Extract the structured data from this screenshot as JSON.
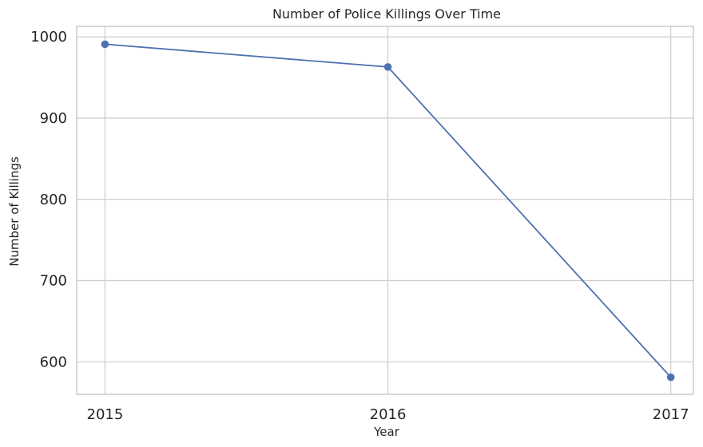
{
  "chart_data": {
    "type": "line",
    "title": "Number of Police Killings Over Time",
    "xlabel": "Year",
    "ylabel": "Number of Killings",
    "categories": [
      "2015",
      "2016",
      "2017"
    ],
    "series": [
      {
        "values": [
          991,
          963,
          581
        ],
        "color": "#4c72b0"
      }
    ],
    "xlim": [
      2014.9,
      2017.08
    ],
    "ylim": [
      560,
      1013
    ],
    "yticks": [
      600,
      700,
      800,
      900,
      1000
    ],
    "grid": true,
    "marker": "circle"
  }
}
